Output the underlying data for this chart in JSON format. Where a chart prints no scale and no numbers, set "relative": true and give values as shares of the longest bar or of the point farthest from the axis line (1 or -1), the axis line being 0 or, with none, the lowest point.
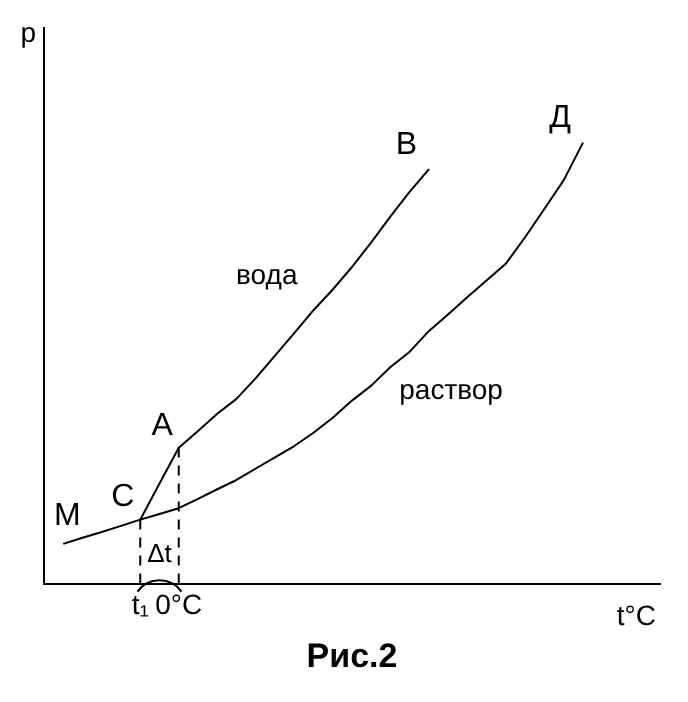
{
  "chart_data": {
    "type": "line",
    "title": "Рис.2",
    "xlabel": "t°C",
    "ylabel": "p",
    "relative": true,
    "grid": false,
    "legend": false,
    "marker": "none",
    "line_style": "solid",
    "categories": [
      null,
      null,
      null,
      null,
      null,
      "t₁",
      null,
      "0°C",
      null,
      null,
      null,
      null,
      null,
      null,
      null,
      null,
      null,
      null,
      null,
      null,
      null,
      null,
      null,
      null,
      null,
      null,
      null,
      null,
      null,
      null,
      null,
      null,
      null
    ],
    "series": [
      {
        "name": "раствор",
        "color": "#000000",
        "values": [
          null,
          0.09,
          0.104,
          0.117,
          0.131,
          0.145,
          0.158,
          0.171,
          0.192,
          0.214,
          0.235,
          0.261,
          0.286,
          0.312,
          0.342,
          0.376,
          0.415,
          0.449,
          0.491,
          0.526,
          0.573,
          0.611,
          0.65,
          0.688,
          0.726,
          0.786,
          0.85,
          0.915,
          1,
          null,
          null,
          null,
          null
        ]
      },
      {
        "name": "вода",
        "color": "#000000",
        "values": [
          null,
          null,
          null,
          null,
          null,
          0.145,
          0.227,
          0.308,
          0.346,
          0.385,
          0.419,
          0.466,
          0.517,
          0.568,
          0.62,
          0.667,
          0.718,
          0.774,
          0.833,
          0.889,
          0.94,
          null,
          null,
          null,
          null,
          null,
          null,
          null,
          null,
          null,
          null,
          null,
          null
        ]
      }
    ],
    "ref_lines": [
      {
        "axis": "x",
        "value": "t₁",
        "color": "#000000",
        "line_style": "dashed"
      },
      {
        "axis": "x",
        "value": "0°C",
        "color": "#000000",
        "line_style": "dashed"
      }
    ],
    "annotations": [
      {
        "text": "C",
        "x": "t₁",
        "y": 0.145
      },
      {
        "text": "A",
        "x": "0°C",
        "y": 0.308
      },
      "M",
      "B",
      "Д",
      "Δt"
    ]
  }
}
